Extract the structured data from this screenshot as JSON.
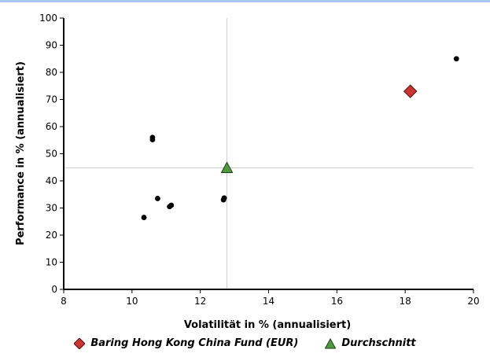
{
  "chart_data": {
    "type": "scatter",
    "title": "",
    "xlabel": "Volatilität in % (annualisiert)",
    "ylabel": "Performance in % (annualisiert)",
    "xlim": [
      8,
      20
    ],
    "ylim": [
      0,
      100
    ],
    "x_ticks": [
      "8",
      "10",
      "12",
      "14",
      "16",
      "18",
      "20"
    ],
    "y_ticks": [
      "0",
      "10",
      "20",
      "30",
      "40",
      "50",
      "60",
      "70",
      "80",
      "90",
      "100"
    ],
    "grid": false,
    "reference_lines": {
      "x": 12.78,
      "y": 44.8
    },
    "legend_position": "bottom",
    "series": [
      {
        "name": "",
        "marker": "dot",
        "color": "#000000",
        "points": [
          {
            "x": 10.35,
            "y": 26.5
          },
          {
            "x": 10.6,
            "y": 55.2
          },
          {
            "x": 10.6,
            "y": 56.0
          },
          {
            "x": 10.75,
            "y": 33.5
          },
          {
            "x": 11.1,
            "y": 30.5
          },
          {
            "x": 11.15,
            "y": 31.0
          },
          {
            "x": 12.68,
            "y": 33.0
          },
          {
            "x": 12.7,
            "y": 33.7
          },
          {
            "x": 19.5,
            "y": 85.0
          }
        ]
      },
      {
        "name": "Baring Hong Kong China Fund (EUR)",
        "marker": "diamond",
        "color": "#cc3333",
        "points": [
          {
            "x": 18.15,
            "y": 73.0
          }
        ]
      },
      {
        "name": "Durchschnitt",
        "marker": "triangle",
        "color": "#4f9a3c",
        "points": [
          {
            "x": 12.78,
            "y": 44.8
          }
        ]
      }
    ]
  }
}
